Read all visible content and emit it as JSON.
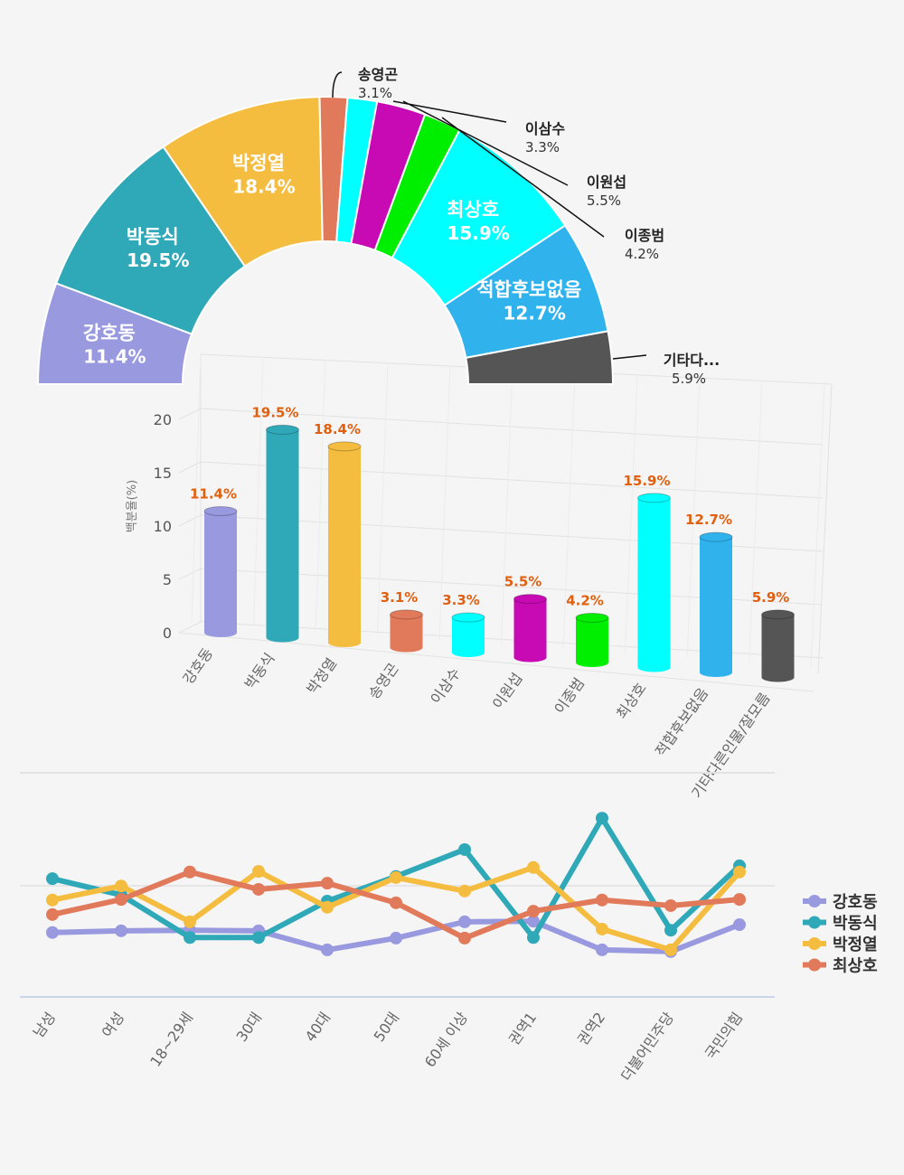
{
  "chart_data": [
    {
      "type": "pie",
      "variant": "semi-donut",
      "categories": [
        "강호동",
        "박동식",
        "박정열",
        "송영곤",
        "이삼수",
        "이원섭",
        "이종범",
        "최상호",
        "적합후보없음",
        "기타다..."
      ],
      "values": [
        11.4,
        19.5,
        18.4,
        3.1,
        3.3,
        5.5,
        4.2,
        15.9,
        12.7,
        5.9
      ],
      "value_labels": [
        "11.4%",
        "19.5%",
        "18.4%",
        "3.1%",
        "3.3%",
        "5.5%",
        "4.2%",
        "15.9%",
        "12.7%",
        "5.9%"
      ],
      "colors": [
        "#9999e0",
        "#2fa8b8",
        "#f5bd3f",
        "#e07a5a",
        "#00ffff",
        "#c80ab4",
        "#00ee00",
        "#00ffff",
        "#30b2ec",
        "#555555"
      ]
    },
    {
      "type": "bar",
      "variant": "3d-cylinder",
      "categories": [
        "강호동",
        "박동식",
        "박정열",
        "송영곤",
        "이삼수",
        "이원섭",
        "이종범",
        "최상호",
        "적합후보없음",
        "기타다른인물/잘모름"
      ],
      "values": [
        11.4,
        19.5,
        18.4,
        3.1,
        3.3,
        5.5,
        4.2,
        15.9,
        12.7,
        5.9
      ],
      "value_labels": [
        "11.4%",
        "19.5%",
        "18.4%",
        "3.1%",
        "3.3%",
        "5.5%",
        "4.2%",
        "15.9%",
        "12.7%",
        "5.9%"
      ],
      "ylabel": "백분율(%)",
      "yticks": [
        "0",
        "5",
        "10",
        "15",
        "20"
      ],
      "ylim": [
        0,
        20
      ],
      "colors": [
        "#9999e0",
        "#2fa8b8",
        "#f5bd3f",
        "#e07a5a",
        "#00ffff",
        "#c80ab4",
        "#00ee00",
        "#00ffff",
        "#30b2ec",
        "#555555"
      ],
      "label_color": "#e06010"
    },
    {
      "type": "line",
      "categories": [
        "남성",
        "여성",
        "18~29세",
        "30대",
        "40대",
        "50대",
        "60세 이상",
        "권역1",
        "권역2",
        "더불어민주당",
        "국민의힘"
      ],
      "ylim": [
        0,
        40
      ],
      "legend": "right",
      "series": [
        {
          "name": "강호동",
          "color": "#9999e0",
          "values": [
            11.5,
            11.8,
            11.9,
            11.8,
            8.4,
            10.5,
            13.4,
            13.5,
            8.4,
            8.1,
            12.9
          ]
        },
        {
          "name": "박동식",
          "color": "#2fa8b8",
          "values": [
            21.1,
            18.2,
            10.6,
            10.6,
            17.1,
            21.5,
            26.3,
            10.6,
            31.9,
            11.9,
            23.4
          ]
        },
        {
          "name": "박정열",
          "color": "#f5bd3f",
          "values": [
            17.3,
            19.8,
            13.4,
            22.4,
            16.0,
            21.3,
            18.9,
            23.1,
            12.1,
            8.4,
            22.3
          ]
        },
        {
          "name": "최상호",
          "color": "#e07a5a",
          "values": [
            14.7,
            17.4,
            22.3,
            19.2,
            20.3,
            16.8,
            10.5,
            15.3,
            17.3,
            16.3,
            17.4
          ]
        }
      ]
    }
  ]
}
